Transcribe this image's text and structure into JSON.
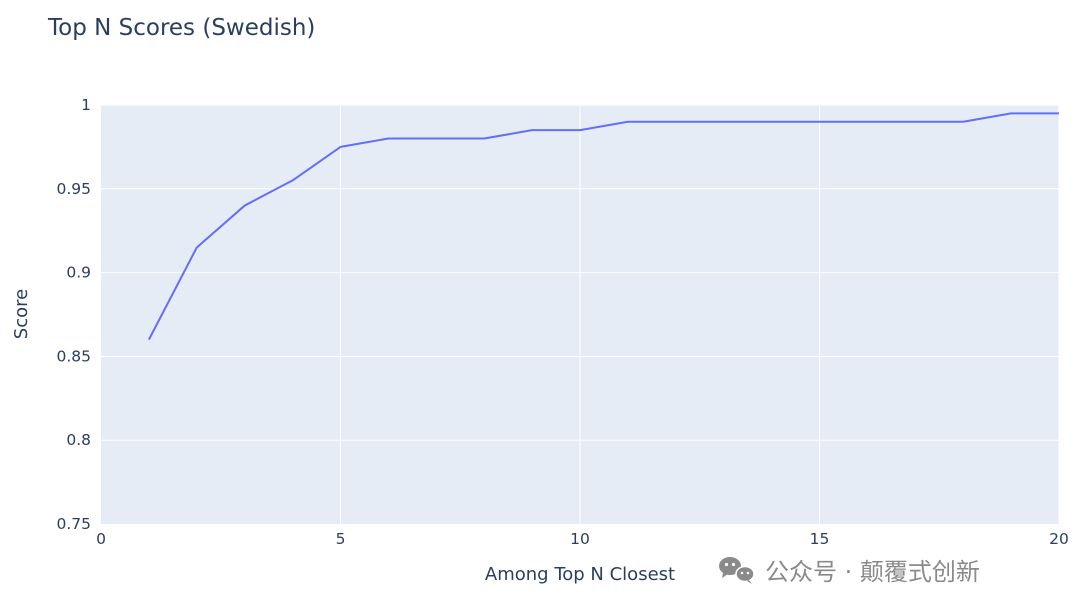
{
  "chart_data": {
    "type": "line",
    "title": "Top N Scores (Swedish)",
    "xlabel": "Among Top N Closest",
    "ylabel": "Score",
    "xlim": [
      0,
      20
    ],
    "ylim": [
      0.75,
      1.0
    ],
    "x_ticks": [
      0,
      5,
      10,
      15,
      20
    ],
    "x_tick_labels": [
      "0",
      "5",
      "10",
      "15",
      "20"
    ],
    "y_ticks": [
      0.75,
      0.8,
      0.85,
      0.9,
      0.95,
      1.0
    ],
    "y_tick_labels": [
      "0.75",
      "0.8",
      "0.85",
      "0.9",
      "0.95",
      "1"
    ],
    "grid": true,
    "plot_background": "#e5ecf6",
    "grid_color": "#ffffff",
    "series": [
      {
        "color": "#636efa",
        "x": [
          1,
          2,
          3,
          4,
          5,
          6,
          7,
          8,
          9,
          10,
          11,
          12,
          13,
          14,
          15,
          16,
          17,
          18,
          19,
          20
        ],
        "y": [
          0.86,
          0.915,
          0.94,
          0.955,
          0.975,
          0.98,
          0.98,
          0.98,
          0.985,
          0.985,
          0.99,
          0.99,
          0.99,
          0.99,
          0.99,
          0.99,
          0.99,
          0.99,
          0.995,
          0.995
        ]
      }
    ]
  },
  "watermark": {
    "icon": "wechat-icon",
    "text": "公众号 · 颠覆式创新",
    "color": "#8a8a8a"
  }
}
